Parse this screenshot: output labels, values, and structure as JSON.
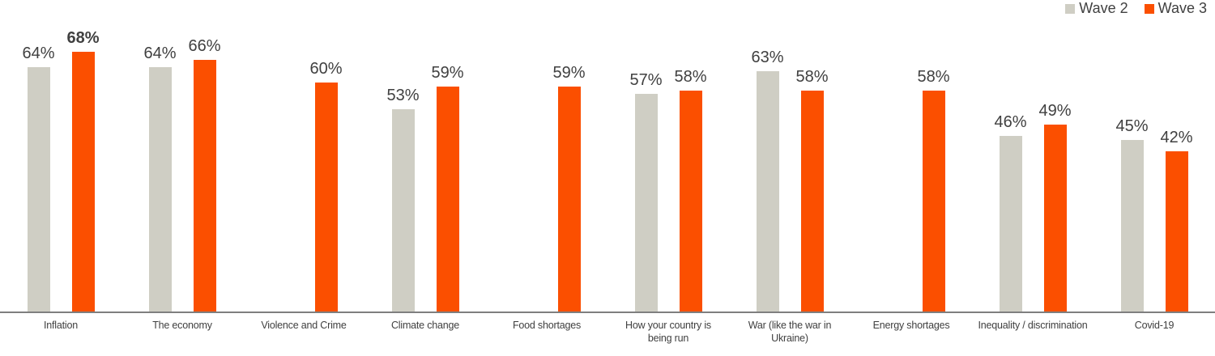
{
  "chart_data": {
    "type": "bar",
    "title": "",
    "xlabel": "",
    "ylabel": "",
    "value_suffix": "%",
    "categories": [
      "Inflation",
      "The economy",
      "Violence and Crime",
      "Climate change",
      "Food shortages",
      "How your country is\nbeing run",
      "War (like the war in\nUkraine)",
      "Energy shortages",
      "Inequality / discrimination",
      "Covid-19"
    ],
    "series": [
      {
        "name": "Wave 2",
        "color": "#CFCEC4",
        "values": [
          64,
          64,
          null,
          53,
          null,
          57,
          63,
          null,
          46,
          45
        ]
      },
      {
        "name": "Wave 3",
        "color": "#FB4F00",
        "values": [
          68,
          66,
          60,
          59,
          59,
          58,
          58,
          58,
          49,
          42
        ]
      }
    ],
    "emphasized_label": {
      "series_index": 1,
      "category_index": 0,
      "series": "Wave 3",
      "category": "Inflation",
      "value": 68
    },
    "ylim": [
      0,
      80
    ],
    "grid": false,
    "legend_position": "top-right",
    "axis_line_color": "#7f7f7f",
    "label_color": "#404040"
  }
}
